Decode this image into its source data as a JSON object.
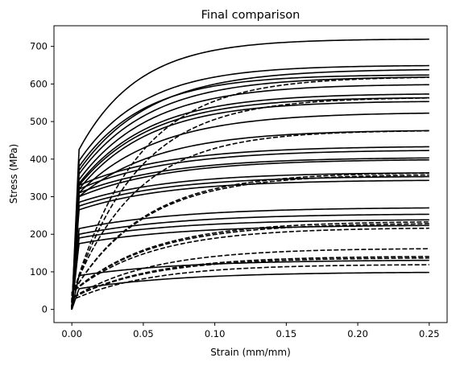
{
  "chart_data": {
    "type": "line",
    "title": "Final comparison",
    "xlabel": "Strain (mm/mm)",
    "ylabel": "Stress (MPa)",
    "xlim": [
      -0.0125,
      0.2625
    ],
    "ylim": [
      -35,
      755
    ],
    "xticks": [
      0.0,
      0.05,
      0.1,
      0.15,
      0.2,
      0.25
    ],
    "xtick_labels": [
      "0.00",
      "0.05",
      "0.10",
      "0.15",
      "0.20",
      "0.25"
    ],
    "yticks": [
      0,
      100,
      200,
      300,
      400,
      500,
      600,
      700
    ],
    "ytick_labels": [
      "0",
      "100",
      "200",
      "300",
      "400",
      "500",
      "600",
      "700"
    ],
    "grid": false,
    "line_color": "#000000",
    "x_max": 0.25,
    "series": [
      {
        "style": "solid",
        "yield": 425,
        "final": 720,
        "k": 24
      },
      {
        "style": "solid",
        "yield": 395,
        "final": 650,
        "k": 22
      },
      {
        "style": "solid",
        "yield": 370,
        "final": 640,
        "k": 20
      },
      {
        "style": "solid",
        "yield": 380,
        "final": 625,
        "k": 22
      },
      {
        "style": "solid",
        "yield": 360,
        "final": 620,
        "k": 20
      },
      {
        "style": "solid",
        "yield": 345,
        "final": 600,
        "k": 20
      },
      {
        "style": "solid",
        "yield": 335,
        "final": 575,
        "k": 20
      },
      {
        "style": "solid",
        "yield": 330,
        "final": 565,
        "k": 20
      },
      {
        "style": "solid",
        "yield": 320,
        "final": 555,
        "k": 20
      },
      {
        "style": "solid",
        "yield": 310,
        "final": 525,
        "k": 18
      },
      {
        "style": "solid",
        "yield": 300,
        "final": 478,
        "k": 18
      },
      {
        "style": "solid",
        "yield": 330,
        "final": 435,
        "k": 16
      },
      {
        "style": "solid",
        "yield": 320,
        "final": 425,
        "k": 16
      },
      {
        "style": "solid",
        "yield": 310,
        "final": 405,
        "k": 16
      },
      {
        "style": "solid",
        "yield": 300,
        "final": 400,
        "k": 16
      },
      {
        "style": "solid",
        "yield": 285,
        "final": 365,
        "k": 16
      },
      {
        "style": "solid",
        "yield": 275,
        "final": 355,
        "k": 16
      },
      {
        "style": "solid",
        "yield": 265,
        "final": 345,
        "k": 16
      },
      {
        "style": "solid",
        "yield": 215,
        "final": 272,
        "k": 14
      },
      {
        "style": "solid",
        "yield": 200,
        "final": 255,
        "k": 14
      },
      {
        "style": "solid",
        "yield": 190,
        "final": 240,
        "k": 14
      },
      {
        "style": "solid",
        "yield": 175,
        "final": 225,
        "k": 14
      },
      {
        "style": "solid",
        "yield": 90,
        "final": 132,
        "k": 14
      },
      {
        "style": "solid",
        "yield": 55,
        "final": 100,
        "k": 14
      },
      {
        "style": "dashed",
        "yield": 30,
        "final": 620,
        "k": 22
      },
      {
        "style": "dashed",
        "yield": 30,
        "final": 565,
        "k": 22
      },
      {
        "style": "dashed",
        "yield": 40,
        "final": 477,
        "k": 22
      },
      {
        "style": "dashed",
        "yield": 40,
        "final": 365,
        "k": 20
      },
      {
        "style": "dashed",
        "yield": 40,
        "final": 360,
        "k": 20
      },
      {
        "style": "dashed",
        "yield": 45,
        "final": 235,
        "k": 18
      },
      {
        "style": "dashed",
        "yield": 45,
        "final": 230,
        "k": 18
      },
      {
        "style": "dashed",
        "yield": 45,
        "final": 218,
        "k": 18
      },
      {
        "style": "dashed",
        "yield": 30,
        "final": 163,
        "k": 18
      },
      {
        "style": "dashed",
        "yield": 30,
        "final": 142,
        "k": 18
      },
      {
        "style": "dashed",
        "yield": 30,
        "final": 138,
        "k": 18
      },
      {
        "style": "dashed",
        "yield": 25,
        "final": 120,
        "k": 18
      }
    ]
  }
}
